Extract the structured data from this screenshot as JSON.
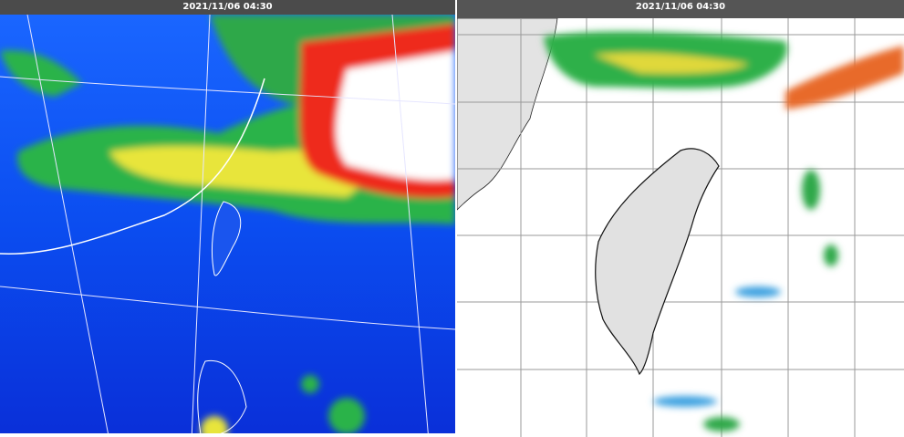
{
  "left_panel": {
    "timestamp": "2021/11/06 04:30"
  },
  "right_panel": {
    "timestamp": "2021/11/06 04:30"
  }
}
